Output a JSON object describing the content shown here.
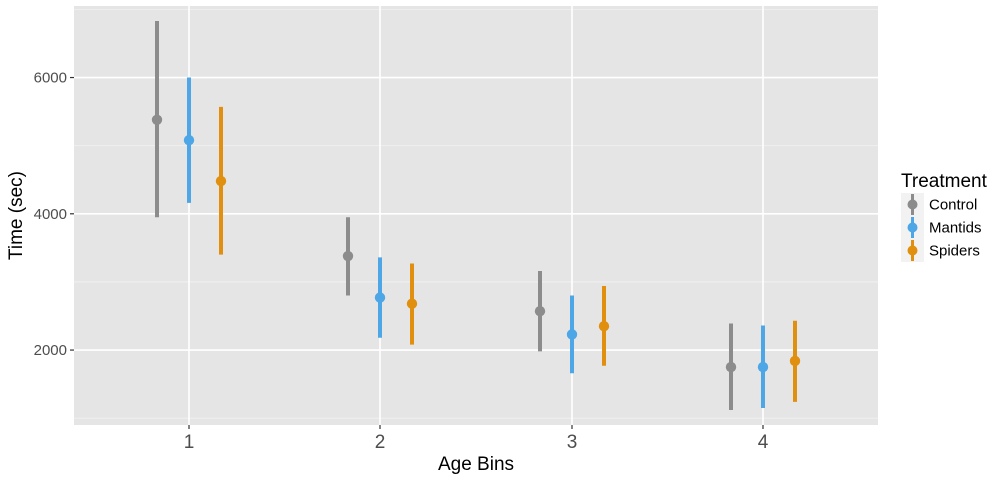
{
  "chart_data": {
    "type": "scatter",
    "subtype": "point-range",
    "xlabel": "Age Bins",
    "ylabel": "Time (sec)",
    "categories": [
      "1",
      "2",
      "3",
      "4"
    ],
    "ylim": [
      900,
      7050
    ],
    "y_ticks": [
      2000,
      4000,
      6000
    ],
    "grid": true,
    "legend": {
      "title": "Treatment",
      "position": "right"
    },
    "series": [
      {
        "name": "Control",
        "color": "#8c8c8c",
        "points": [
          {
            "x": "1",
            "y": 5380,
            "ymin": 3950,
            "ymax": 6830
          },
          {
            "x": "2",
            "y": 3380,
            "ymin": 2800,
            "ymax": 3950
          },
          {
            "x": "3",
            "y": 2570,
            "ymin": 1980,
            "ymax": 3160
          },
          {
            "x": "4",
            "y": 1750,
            "ymin": 1120,
            "ymax": 2390
          }
        ]
      },
      {
        "name": "Mantids",
        "color": "#4da6e6",
        "points": [
          {
            "x": "1",
            "y": 5080,
            "ymin": 4160,
            "ymax": 6000
          },
          {
            "x": "2",
            "y": 2770,
            "ymin": 2180,
            "ymax": 3360
          },
          {
            "x": "3",
            "y": 2230,
            "ymin": 1660,
            "ymax": 2800
          },
          {
            "x": "4",
            "y": 1750,
            "ymin": 1150,
            "ymax": 2360
          }
        ]
      },
      {
        "name": "Spiders",
        "color": "#e0900e",
        "points": [
          {
            "x": "1",
            "y": 4480,
            "ymin": 3400,
            "ymax": 5570
          },
          {
            "x": "2",
            "y": 2680,
            "ymin": 2080,
            "ymax": 3270
          },
          {
            "x": "3",
            "y": 2350,
            "ymin": 1770,
            "ymax": 2940
          },
          {
            "x": "4",
            "y": 1840,
            "ymin": 1240,
            "ymax": 2430
          }
        ]
      }
    ]
  }
}
